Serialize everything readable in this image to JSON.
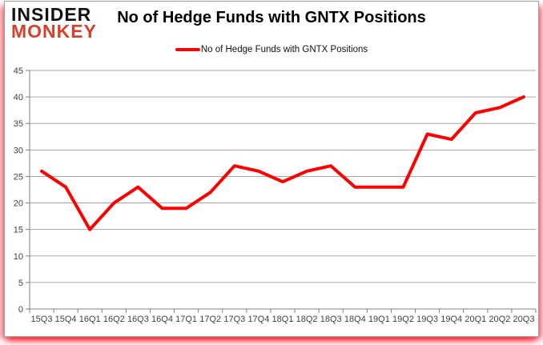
{
  "logo": {
    "line1": "INSIDER",
    "line2": "MONKEY",
    "line1_color": "#111111",
    "line2_color": "#d9402b"
  },
  "header": {
    "title": "No of Hedge Funds with GNTX Positions"
  },
  "legend": {
    "label": "No of Hedge Funds with GNTX Positions",
    "swatch_color": "#ff0000"
  },
  "chart_data": {
    "type": "line",
    "title": "No of Hedge Funds with GNTX Positions",
    "categories": [
      "15Q3",
      "15Q4",
      "16Q1",
      "16Q2",
      "16Q3",
      "16Q4",
      "17Q1",
      "17Q2",
      "17Q3",
      "17Q4",
      "18Q1",
      "18Q2",
      "18Q3",
      "18Q4",
      "19Q1",
      "19Q2",
      "19Q3",
      "19Q4",
      "20Q1",
      "20Q2",
      "20Q3"
    ],
    "series": [
      {
        "name": "No of Hedge Funds with GNTX Positions",
        "values": [
          26,
          23,
          15,
          20,
          23,
          19,
          19,
          22,
          27,
          26,
          24,
          26,
          27,
          23,
          23,
          23,
          33,
          32,
          37,
          38,
          40
        ]
      }
    ],
    "xlabel": "",
    "ylabel": "",
    "ylim": [
      0,
      45
    ],
    "ytick_interval": 5,
    "grid": true,
    "legend_position": "top",
    "colors": {
      "line": "#ff0000",
      "gridline": "#a6a6a6",
      "axis": "#808080",
      "tick_text": "#3f3f3f"
    }
  },
  "frame": {
    "background": "#ffffff",
    "border_color": "#a0a0a0",
    "glow_color": "#fb0d1b"
  }
}
